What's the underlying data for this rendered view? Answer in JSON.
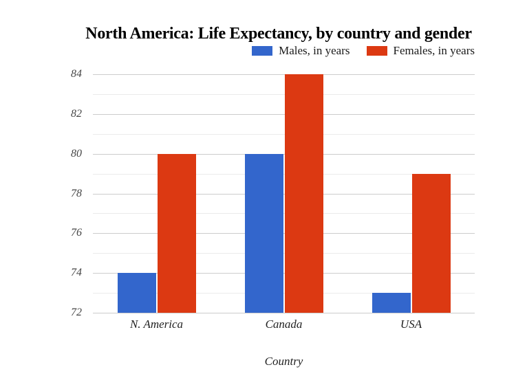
{
  "chart_data": {
    "type": "bar",
    "title": "North America: Life Expectancy, by country and gender",
    "categories": [
      "N. America",
      "Canada",
      "USA"
    ],
    "series": [
      {
        "name": "Males, in years",
        "color": "#3366cc",
        "values": [
          74,
          80,
          73
        ]
      },
      {
        "name": "Females, in years",
        "color": "#dc3912",
        "values": [
          80,
          84,
          79
        ]
      }
    ],
    "xlabel": "Country",
    "ylabel": "",
    "ylim": [
      72,
      84
    ],
    "ytick_step": 2,
    "yticks": [
      72,
      74,
      76,
      78,
      80,
      82,
      84
    ],
    "minor_gridlines": true,
    "legend_position": "top-right",
    "grid_on": true,
    "colors": {
      "major_gridline": "#cccccc",
      "minor_gridline": "#ebebeb",
      "tick_label": "#444444",
      "category_label": "#222222",
      "title": "#000000",
      "background": "#ffffff"
    }
  }
}
